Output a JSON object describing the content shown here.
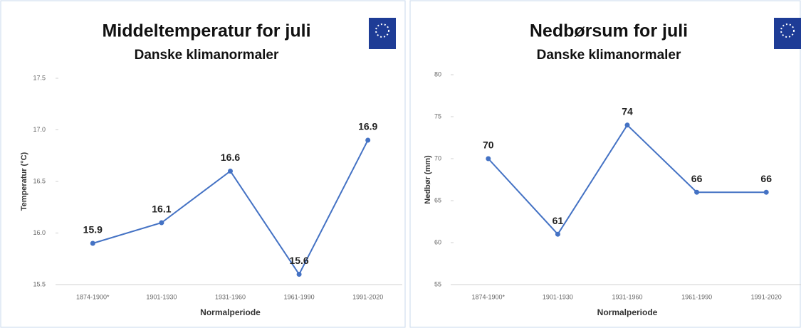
{
  "chart_data": [
    {
      "type": "line",
      "title": "Middeltemperatur for juli",
      "subtitle": "Danske klimanormaler",
      "x_label": "Normalperiode",
      "y_label": "Temperatur (°C)",
      "categories": [
        "1874-1900*",
        "1901-1930",
        "1931-1960",
        "1961-1990",
        "1991-2020"
      ],
      "values": [
        15.9,
        16.1,
        16.6,
        15.6,
        16.9
      ],
      "color": "#4472c4",
      "ylim": [
        15.5,
        17.5
      ],
      "yticks": [
        15.5,
        {
          "value": 16,
          "label": "16.0"
        },
        16.5,
        {
          "value": 17,
          "label": "17.0"
        },
        17.5
      ]
    },
    {
      "type": "line",
      "title": "Nedbørsum for juli",
      "subtitle": "Danske klimanormaler",
      "x_label": "Normalperiode",
      "y_label": "Nedbør (mm)",
      "categories": [
        "1874-1900*",
        "1901-1930",
        "1931-1960",
        "1961-1990",
        "1991-2020"
      ],
      "values": [
        70,
        61,
        74,
        66,
        66
      ],
      "color": "#4472c4",
      "ylim": [
        55,
        80
      ],
      "yticks": [
        55,
        60,
        65,
        70,
        75,
        80
      ]
    }
  ]
}
